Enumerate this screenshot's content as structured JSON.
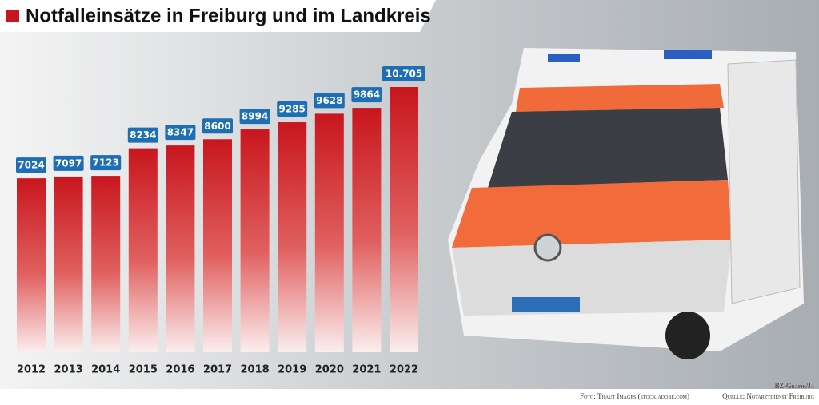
{
  "chart_data": {
    "type": "bar",
    "title": "Notfalleinsätze in Freiburg und im Landkreis",
    "categories": [
      "2012",
      "2013",
      "2014",
      "2015",
      "2016",
      "2017",
      "2018",
      "2019",
      "2020",
      "2021",
      "2022"
    ],
    "values": [
      7024,
      7097,
      7123,
      8234,
      8347,
      8600,
      8994,
      9285,
      9628,
      9864,
      10705
    ],
    "value_labels": [
      "7024",
      "7097",
      "7123",
      "8234",
      "8347",
      "8600",
      "8994",
      "9285",
      "9628",
      "9864",
      "10.705"
    ],
    "color": "#c8161d",
    "label_color": "#1e6eb4",
    "credit": "BZ-Grafik/Ja",
    "photo_credit": "Foto: Thaut Images (stock.adobe.com)",
    "source": "Quelle: Notarztdienst Freiburg"
  }
}
